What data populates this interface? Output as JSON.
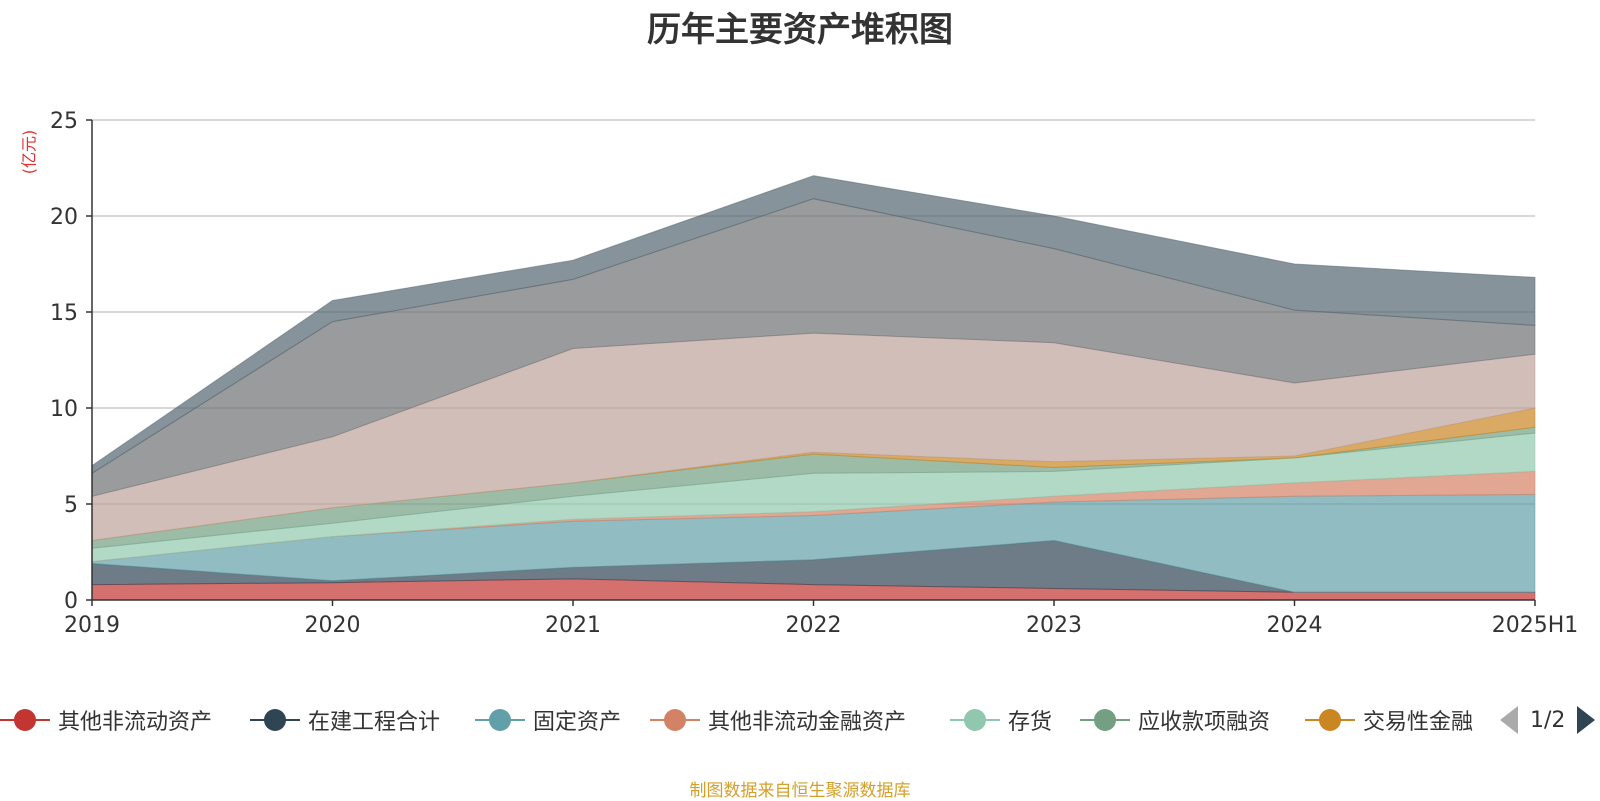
{
  "chart_data": {
    "type": "area",
    "stacked": true,
    "title": "历年主要资产堆积图",
    "unit_label": "(亿元)",
    "x": [
      "2019",
      "2020",
      "2021",
      "2022",
      "2023",
      "2024",
      "2025H1"
    ],
    "ylim": [
      0,
      25
    ],
    "yticks": [
      "0",
      "5",
      "10",
      "15",
      "20",
      "25"
    ],
    "grid": true,
    "legend_position": "bottom",
    "series": [
      {
        "name": "其他非流动资产",
        "color": "#c23531",
        "values": [
          0.8,
          0.9,
          1.1,
          0.8,
          0.6,
          0.4,
          0.4
        ]
      },
      {
        "name": "在建工程合计",
        "color": "#2f4554",
        "values": [
          1.1,
          0.1,
          0.6,
          1.3,
          2.5,
          0.0,
          0.0
        ]
      },
      {
        "name": "固定资产",
        "color": "#61a0a8",
        "values": [
          0.1,
          2.3,
          2.4,
          2.3,
          2.0,
          5.0,
          5.1
        ]
      },
      {
        "name": "其他非流动金融资产",
        "color": "#d48265",
        "values": [
          0.0,
          0.0,
          0.1,
          0.2,
          0.3,
          0.7,
          1.2
        ]
      },
      {
        "name": "存货",
        "color": "#91c7ae",
        "values": [
          0.7,
          0.7,
          1.2,
          2.0,
          1.3,
          1.3,
          2.0
        ]
      },
      {
        "name": "应收款项融资",
        "color": "#749f83",
        "values": [
          0.4,
          0.8,
          0.7,
          1.0,
          0.2,
          0.0,
          0.3
        ]
      },
      {
        "name": "交易性金融",
        "color": "#ca8622",
        "values": [
          0.0,
          0.0,
          0.0,
          0.1,
          0.3,
          0.1,
          1.0
        ]
      },
      {
        "color": "#bda29a",
        "values": [
          2.3,
          3.7,
          7.0,
          6.2,
          6.2,
          3.8,
          2.8
        ]
      },
      {
        "color": "#6e7074",
        "values": [
          1.2,
          6.0,
          3.6,
          7.0,
          4.9,
          3.8,
          1.5
        ]
      },
      {
        "color": "#546570",
        "values": [
          0.4,
          1.1,
          1.0,
          1.2,
          1.7,
          2.4,
          2.5
        ]
      }
    ]
  },
  "legend": {
    "page_text": "1/2"
  },
  "source_note": "制图数据来自恒生聚源数据库"
}
